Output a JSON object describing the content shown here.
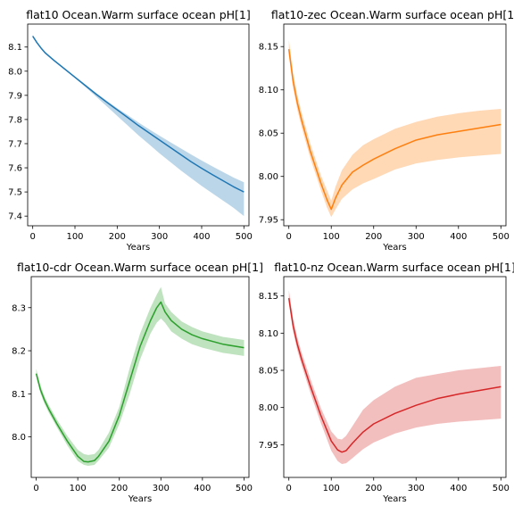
{
  "chart_data": [
    {
      "type": "line",
      "title": "flat10 Ocean.Warm surface ocean pH[1]",
      "xlabel": "Years",
      "ylabel": "",
      "xlim": [
        -12,
        512
      ],
      "ylim": [
        7.36,
        8.195
      ],
      "xticks": [
        0,
        100,
        200,
        300,
        400,
        500
      ],
      "yticks": [
        7.4,
        7.5,
        7.6,
        7.7,
        7.8,
        7.9,
        8.0,
        8.1
      ],
      "ytick_labels": [
        "7.4",
        "7.5",
        "7.6",
        "7.7",
        "7.8",
        "7.9",
        "8.0",
        "8.1"
      ],
      "color": "#1f77b4",
      "band_color": "#1f77b4",
      "series": [
        {
          "x": [
            0,
            10,
            20,
            30,
            50,
            75,
            100,
            125,
            150,
            175,
            200,
            225,
            250,
            275,
            300,
            325,
            350,
            375,
            400,
            425,
            450,
            475,
            500
          ],
          "mean": [
            8.145,
            8.118,
            8.095,
            8.075,
            8.045,
            8.01,
            7.975,
            7.94,
            7.905,
            7.872,
            7.84,
            7.808,
            7.775,
            7.745,
            7.715,
            7.685,
            7.655,
            7.625,
            7.598,
            7.572,
            7.547,
            7.522,
            7.5
          ],
          "upper": [
            8.15,
            8.122,
            8.099,
            8.079,
            8.049,
            8.014,
            7.979,
            7.944,
            7.91,
            7.878,
            7.847,
            7.818,
            7.788,
            7.76,
            7.733,
            7.707,
            7.681,
            7.655,
            7.63,
            7.606,
            7.583,
            7.56,
            7.54
          ],
          "lower": [
            8.14,
            8.114,
            8.091,
            8.071,
            8.041,
            8.006,
            7.971,
            7.934,
            7.895,
            7.855,
            7.815,
            7.775,
            7.735,
            7.698,
            7.66,
            7.625,
            7.59,
            7.557,
            7.525,
            7.495,
            7.465,
            7.435,
            7.4
          ]
        }
      ]
    },
    {
      "type": "line",
      "title": "flat10-zec Ocean.Warm surface ocean pH[1]",
      "xlabel": "Years",
      "ylabel": "",
      "xlim": [
        -12,
        512
      ],
      "ylim": [
        7.943,
        8.176
      ],
      "xticks": [
        0,
        100,
        200,
        300,
        400,
        500
      ],
      "yticks": [
        7.95,
        8.0,
        8.05,
        8.1,
        8.15
      ],
      "ytick_labels": [
        "7.95",
        "8.00",
        "8.05",
        "8.10",
        "8.15"
      ],
      "color": "#ff7f0e",
      "band_color": "#ff7f0e",
      "series": [
        {
          "x": [
            0,
            10,
            20,
            30,
            50,
            75,
            90,
            100,
            110,
            125,
            150,
            175,
            200,
            250,
            300,
            350,
            400,
            450,
            500
          ],
          "mean": [
            8.147,
            8.11,
            8.085,
            8.065,
            8.03,
            7.993,
            7.973,
            7.962,
            7.975,
            7.99,
            8.005,
            8.013,
            8.02,
            8.032,
            8.042,
            8.048,
            8.052,
            8.056,
            8.06
          ],
          "upper": [
            8.158,
            8.12,
            8.094,
            8.074,
            8.039,
            8.002,
            7.984,
            7.972,
            7.988,
            8.007,
            8.025,
            8.036,
            8.043,
            8.055,
            8.063,
            8.069,
            8.073,
            8.076,
            8.078
          ],
          "lower": [
            8.14,
            8.102,
            8.077,
            8.057,
            8.022,
            7.985,
            7.964,
            7.953,
            7.962,
            7.974,
            7.985,
            7.992,
            7.997,
            8.008,
            8.015,
            8.019,
            8.022,
            8.024,
            8.026
          ]
        }
      ]
    },
    {
      "type": "line",
      "title": "flat10-cdr Ocean.Warm surface ocean pH[1]",
      "xlabel": "Years",
      "ylabel": "",
      "xlim": [
        -12,
        512
      ],
      "ylim": [
        7.906,
        8.372
      ],
      "xticks": [
        0,
        100,
        200,
        300,
        400,
        500
      ],
      "yticks": [
        8.0,
        8.1,
        8.2,
        8.3
      ],
      "ytick_labels": [
        "8.0",
        "8.1",
        "8.2",
        "8.3"
      ],
      "color": "#2ca02c",
      "band_color": "#2ca02c",
      "series": [
        {
          "x": [
            0,
            10,
            20,
            30,
            50,
            75,
            100,
            115,
            125,
            140,
            150,
            175,
            200,
            225,
            250,
            275,
            290,
            300,
            310,
            325,
            350,
            375,
            400,
            450,
            500
          ],
          "mean": [
            8.147,
            8.11,
            8.085,
            8.065,
            8.03,
            7.99,
            7.955,
            7.943,
            7.942,
            7.945,
            7.955,
            7.99,
            8.05,
            8.13,
            8.21,
            8.27,
            8.3,
            8.313,
            8.29,
            8.27,
            8.25,
            8.237,
            8.228,
            8.215,
            8.207
          ],
          "upper": [
            8.158,
            8.12,
            8.094,
            8.074,
            8.04,
            8.002,
            7.97,
            7.96,
            7.958,
            7.96,
            7.97,
            8.01,
            8.07,
            8.16,
            8.24,
            8.3,
            8.33,
            8.348,
            8.31,
            8.29,
            8.268,
            8.255,
            8.245,
            8.232,
            8.225
          ],
          "lower": [
            8.14,
            8.102,
            8.077,
            8.057,
            8.022,
            7.98,
            7.944,
            7.935,
            7.933,
            7.935,
            7.945,
            7.975,
            8.03,
            8.1,
            8.18,
            8.24,
            8.265,
            8.275,
            8.265,
            8.245,
            8.228,
            8.215,
            8.207,
            8.195,
            8.188
          ]
        }
      ]
    },
    {
      "type": "line",
      "title": "flat10-nz Ocean.Warm surface ocean pH[1]",
      "xlabel": "Years",
      "ylabel": "",
      "xlim": [
        -12,
        512
      ],
      "ylim": [
        7.906,
        8.176
      ],
      "xticks": [
        0,
        100,
        200,
        300,
        400,
        500
      ],
      "yticks": [
        7.95,
        8.0,
        8.05,
        8.1,
        8.15
      ],
      "ytick_labels": [
        "7.95",
        "8.00",
        "8.05",
        "8.10",
        "8.15"
      ],
      "color": "#d62728",
      "band_color": "#d62728",
      "series": [
        {
          "x": [
            0,
            10,
            20,
            30,
            50,
            75,
            100,
            115,
            125,
            135,
            150,
            175,
            200,
            250,
            300,
            350,
            400,
            450,
            500
          ],
          "mean": [
            8.147,
            8.11,
            8.085,
            8.065,
            8.03,
            7.99,
            7.955,
            7.943,
            7.94,
            7.942,
            7.952,
            7.967,
            7.978,
            7.992,
            8.003,
            8.012,
            8.018,
            8.023,
            8.028
          ],
          "upper": [
            8.158,
            8.12,
            8.094,
            8.074,
            8.04,
            8.0,
            7.968,
            7.958,
            7.957,
            7.962,
            7.975,
            7.997,
            8.01,
            8.028,
            8.04,
            8.045,
            8.05,
            8.053,
            8.056
          ],
          "lower": [
            8.14,
            8.102,
            8.077,
            8.057,
            8.021,
            7.98,
            7.942,
            7.928,
            7.924,
            7.925,
            7.932,
            7.944,
            7.953,
            7.965,
            7.973,
            7.978,
            7.981,
            7.983,
            7.985
          ]
        }
      ]
    }
  ]
}
